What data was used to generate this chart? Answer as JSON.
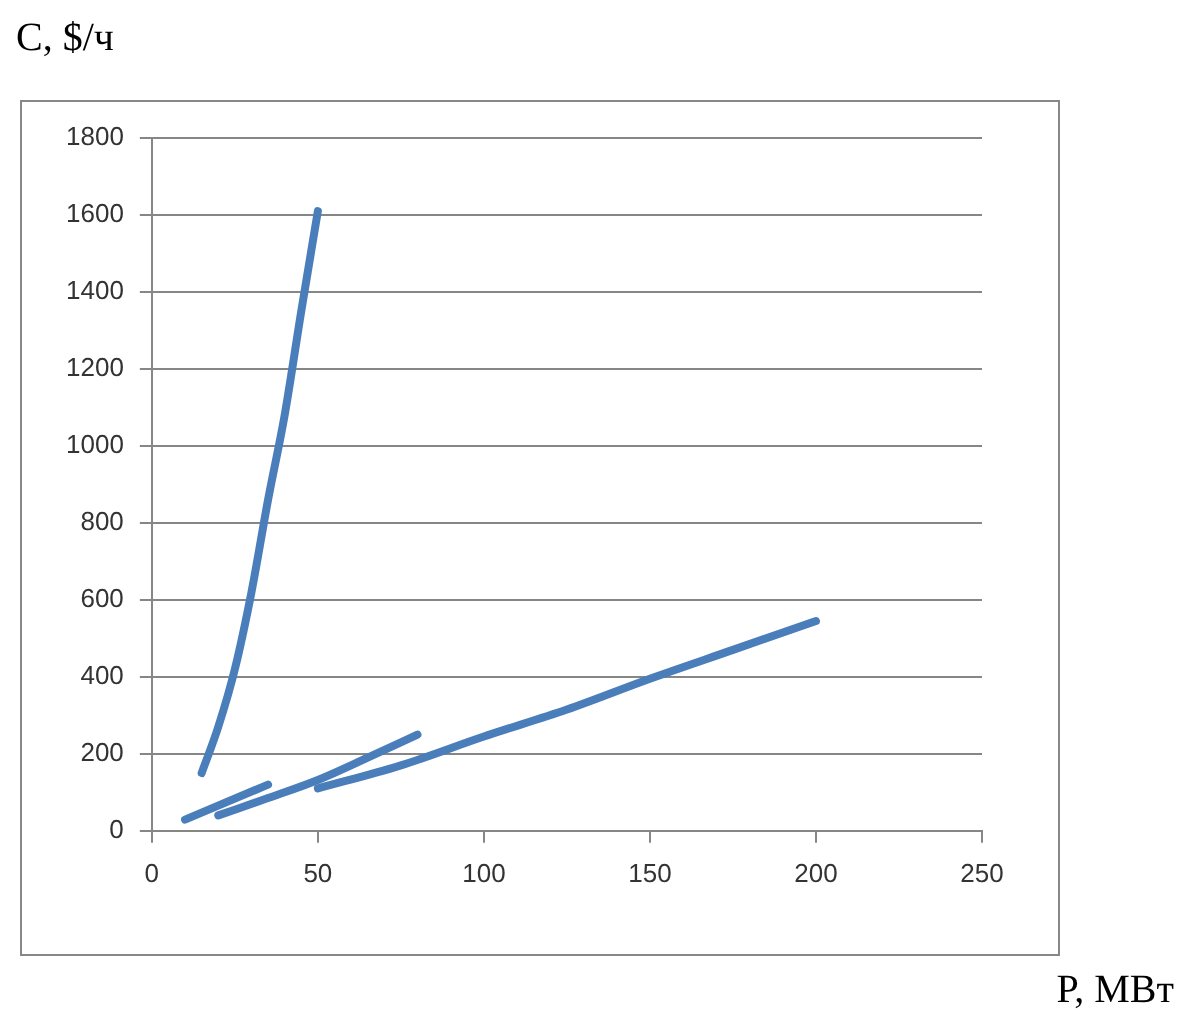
{
  "chart_data": {
    "type": "line",
    "xlabel": "P, МВт",
    "ylabel": "C, $/ч",
    "xlim": [
      0,
      250
    ],
    "xticks": [
      0,
      50,
      100,
      150,
      200,
      250
    ],
    "ylim": [
      0,
      1800
    ],
    "yticks": [
      0,
      200,
      400,
      600,
      800,
      1000,
      1200,
      1400,
      1600,
      1800
    ],
    "grid": "y",
    "legend": false,
    "marker": "none",
    "line_style": "solid",
    "series": [
      {
        "color": "#4a7ebb",
        "x": [
          15,
          20,
          25,
          30,
          35,
          40,
          45,
          50
        ],
        "values": [
          150,
          270,
          420,
          620,
          860,
          1080,
          1350,
          1610
        ]
      },
      {
        "color": "#4a7ebb",
        "x": [
          10,
          35
        ],
        "values": [
          29,
          120
        ]
      },
      {
        "color": "#4a7ebb",
        "x": [
          20,
          35,
          50,
          65,
          80
        ],
        "values": [
          40,
          85,
          132,
          190,
          250
        ]
      },
      {
        "color": "#4a7ebb",
        "x": [
          50,
          75,
          100,
          125,
          150,
          175,
          200
        ],
        "values": [
          110,
          170,
          245,
          315,
          395,
          470,
          545
        ]
      }
    ]
  }
}
